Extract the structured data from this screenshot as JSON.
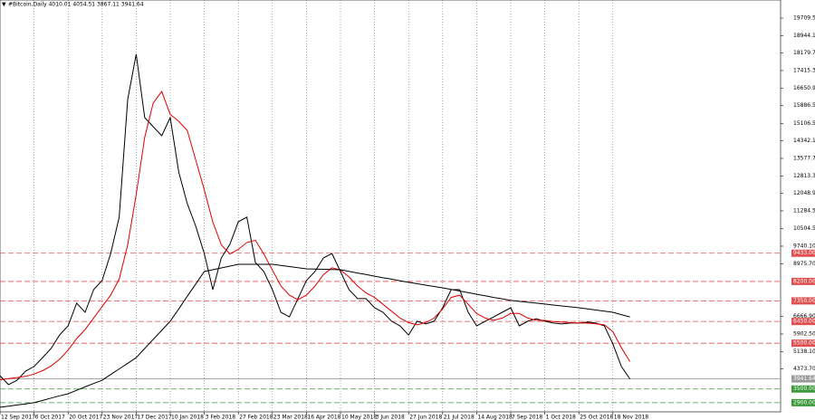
{
  "chart_data": {
    "type": "line",
    "title": "#Bitcoin,Daily 4010.01 4054.51 3867.11 3941.64",
    "categories": [
      "12 Sep 2017",
      null,
      null,
      null,
      "6 Oct 2017",
      null,
      null,
      null,
      "20 Oct 2017",
      null,
      null,
      null,
      "23 Nov 2017",
      null,
      null,
      null,
      "17 Dec 2017",
      null,
      null,
      null,
      "10 Jan 2018",
      null,
      null,
      null,
      "3 Feb 2018",
      null,
      null,
      null,
      "27 Feb 2018",
      null,
      null,
      null,
      "23 Mar 2018",
      null,
      null,
      null,
      "16 Apr 2018",
      null,
      null,
      null,
      "10 May 2018",
      null,
      null,
      null,
      "3 Jun 2018",
      null,
      null,
      null,
      "27 Jun 2018",
      null,
      null,
      null,
      "21 Jul 2018",
      null,
      null,
      null,
      "14 Aug 2018",
      null,
      null,
      null,
      "7 Sep 2018",
      null,
      null,
      null,
      "1 Oct 2018",
      null,
      null,
      null,
      "25 Oct 2018",
      null,
      null,
      null,
      "18 Nov 2018",
      null,
      null
    ],
    "series": [
      {
        "color": "#000000",
        "values": [
          4080,
          3690,
          3880,
          4280,
          4480,
          4870,
          5270,
          5860,
          6260,
          7250,
          6850,
          7840,
          8240,
          9420,
          11000,
          16150,
          18130,
          15360,
          14960,
          14570,
          15360,
          12980,
          11600,
          10610,
          9420,
          7840,
          9230,
          9820,
          10810,
          11010,
          9030,
          8630,
          7840,
          6850,
          6650,
          7450,
          8240,
          8630,
          9230,
          9420,
          8630,
          7840,
          7450,
          7450,
          7050,
          6850,
          6460,
          6260,
          5860,
          6460,
          6340,
          6460,
          7050,
          7840,
          7840,
          6850,
          6260,
          6460,
          6650,
          6850,
          7050,
          6260,
          6460,
          6570,
          6460,
          6380,
          6340,
          6380,
          6380,
          6420,
          6380,
          6260,
          5470,
          4480,
          3941.64
        ]
      },
      {
        "color": "#e00000",
        "values": [
          3900,
          3950,
          4000,
          4050,
          4150,
          4300,
          4500,
          4800,
          5200,
          5700,
          6100,
          6600,
          7100,
          7600,
          8300,
          9800,
          12000,
          14500,
          16000,
          16500,
          15500,
          15200,
          14800,
          13500,
          12200,
          10800,
          9800,
          9400,
          9600,
          9900,
          10000,
          9400,
          8700,
          8000,
          7600,
          7400,
          7600,
          8000,
          8500,
          8800,
          8700,
          8400,
          8000,
          7700,
          7500,
          7200,
          6900,
          6600,
          6400,
          6300,
          6400,
          6600,
          7000,
          7500,
          7600,
          7200,
          6800,
          6600,
          6500,
          6600,
          6800,
          6800,
          6600,
          6500,
          6500,
          6450,
          6420,
          6400,
          6380,
          6380,
          6350,
          6300,
          6000,
          5300,
          4700
        ]
      },
      {
        "color": "#000000",
        "values": [
          2700,
          2750,
          2800,
          2850,
          2900,
          3000,
          3100,
          3200,
          3290,
          3440,
          3590,
          3740,
          3880,
          4130,
          4380,
          4620,
          4870,
          5270,
          5670,
          6060,
          6460,
          7000,
          7550,
          8090,
          8630,
          8710,
          8790,
          8870,
          8950,
          8950,
          8950,
          8950,
          8950,
          8900,
          8850,
          8800,
          8750,
          8740,
          8730,
          8720,
          8710,
          8640,
          8570,
          8500,
          8430,
          8360,
          8300,
          8230,
          8160,
          8100,
          8040,
          7980,
          7920,
          7850,
          7780,
          7710,
          7640,
          7570,
          7500,
          7440,
          7370,
          7330,
          7290,
          7250,
          7210,
          7170,
          7130,
          7090,
          7050,
          7000,
          6950,
          6900,
          6850,
          6750,
          6650
        ]
      }
    ],
    "ylim": [
      2500,
      20500
    ],
    "yticks": [
      {
        "value": 19709.5,
        "label": "19709.50"
      },
      {
        "value": 18944.1,
        "label": "18944.10"
      },
      {
        "value": 18179.7,
        "label": "18179.70"
      },
      {
        "value": 17415.3,
        "label": "17415.30"
      },
      {
        "value": 16650.9,
        "label": "16650.90"
      },
      {
        "value": 15886.5,
        "label": "15886.50"
      },
      {
        "value": 15106.5,
        "label": "15106.50"
      },
      {
        "value": 14342.1,
        "label": "14342.10"
      },
      {
        "value": 13577.7,
        "label": "13577.70"
      },
      {
        "value": 12813.3,
        "label": "12813.30"
      },
      {
        "value": 12048.9,
        "label": "12048.90"
      },
      {
        "value": 11284.5,
        "label": "11284.50"
      },
      {
        "value": 10504.5,
        "label": "10504.50"
      },
      {
        "value": 9740.1,
        "label": "9740.10"
      },
      {
        "value": 8975.7,
        "label": "8975.70"
      },
      {
        "value": 6666.9,
        "label": "6666.90"
      },
      {
        "value": 5902.5,
        "label": "5902.50"
      },
      {
        "value": 5138.1,
        "label": "5138.10"
      },
      {
        "value": 4373.7,
        "label": "4373.70"
      }
    ],
    "levels": [
      {
        "value": 9433,
        "label": "9433.00",
        "color": "#e05050"
      },
      {
        "value": 8200,
        "label": "8200.00",
        "color": "#e05050"
      },
      {
        "value": 7350,
        "label": "7350.00",
        "color": "#e05050"
      },
      {
        "value": 6450,
        "label": "6450.00",
        "color": "#e05050"
      },
      {
        "value": 5500,
        "label": "5500.00",
        "color": "#e05050"
      },
      {
        "value": 3941.64,
        "color": "#9a9a9a"
      },
      {
        "value": 3500,
        "label": "3500.00",
        "color": "#3a9a3a"
      },
      {
        "value": 2900,
        "label": "2900.00",
        "color": "#3a9a3a"
      }
    ],
    "grid": true
  }
}
